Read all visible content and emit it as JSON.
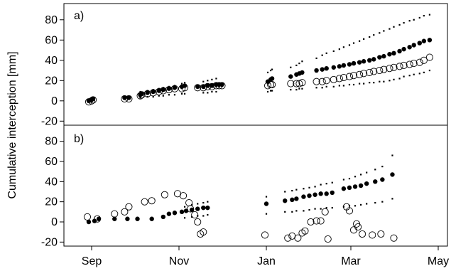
{
  "figure": {
    "ylabel": "Cumulative interception [mm]"
  },
  "chart_data": [
    {
      "type": "scatter",
      "panel_label": "a)",
      "x_axis": {
        "ticks": [
          "Sep",
          "Nov",
          "Jan",
          "Mar",
          "May"
        ]
      },
      "ylabel": "Cumulative interception [mm]",
      "yticks": [
        -20,
        0,
        20,
        40,
        60,
        80
      ],
      "ylim": [
        -24,
        96
      ],
      "grid": false,
      "series": [
        {
          "marker": "filled-circle",
          "x": [
            "Aug 30",
            "Sep 1",
            "Sep 2",
            "Sep 24",
            "Sep 27",
            "Oct 5",
            "Oct 6",
            "Oct 10",
            "Oct 14",
            "Oct 18",
            "Oct 21",
            "Oct 25",
            "Oct 29",
            "Nov 3",
            "Nov 5",
            "Nov 14",
            "Nov 18",
            "Nov 21",
            "Nov 24",
            "Nov 27",
            "Nov 29",
            "Dec 1",
            "Jan 2",
            "Jan 4",
            "Jan 5",
            "Jan 18",
            "Jan 22",
            "Jan 24",
            "Jan 26",
            "Feb 5",
            "Feb 9",
            "Feb 12",
            "Feb 17",
            "Feb 21",
            "Feb 24",
            "Feb 28",
            "Mar 3",
            "Mar 7",
            "Mar 10",
            "Mar 14",
            "Mar 17",
            "Mar 21",
            "Mar 24",
            "Mar 28",
            "Mar 31",
            "Apr 4",
            "Apr 7",
            "Apr 11",
            "Apr 14",
            "Apr 18",
            "Apr 21",
            "Apr 25"
          ],
          "y": [
            0,
            1,
            2,
            3,
            3,
            6,
            7,
            8,
            9,
            10,
            11,
            12,
            13,
            14,
            15,
            14,
            14,
            15,
            15,
            16,
            16,
            16,
            19,
            21,
            22,
            24,
            26,
            27,
            28,
            30,
            31,
            32,
            33,
            34,
            35,
            36,
            37,
            38,
            39,
            40,
            41,
            43,
            44,
            46,
            47,
            49,
            51,
            53,
            55,
            57,
            59,
            60
          ]
        },
        {
          "marker": "open-circle",
          "x": [
            "Aug 30",
            "Sep 1",
            "Sep 2",
            "Sep 24",
            "Sep 27",
            "Oct 5",
            "Oct 6",
            "Oct 10",
            "Oct 14",
            "Oct 18",
            "Oct 21",
            "Oct 25",
            "Oct 29",
            "Nov 3",
            "Nov 5",
            "Nov 14",
            "Nov 18",
            "Nov 21",
            "Nov 24",
            "Nov 27",
            "Nov 29",
            "Dec 1",
            "Jan 2",
            "Jan 4",
            "Jan 5",
            "Jan 18",
            "Jan 22",
            "Jan 24",
            "Jan 26",
            "Feb 5",
            "Feb 9",
            "Feb 12",
            "Feb 17",
            "Feb 21",
            "Feb 24",
            "Feb 28",
            "Mar 3",
            "Mar 7",
            "Mar 10",
            "Mar 14",
            "Mar 17",
            "Mar 21",
            "Mar 24",
            "Mar 28",
            "Mar 31",
            "Apr 4",
            "Apr 7",
            "Apr 11",
            "Apr 14",
            "Apr 18",
            "Apr 21",
            "Apr 25"
          ],
          "y": [
            -1,
            0,
            1,
            2,
            2,
            5,
            6,
            7,
            8,
            9,
            10,
            11,
            12,
            12,
            13,
            13,
            13,
            14,
            14,
            15,
            15,
            15,
            15,
            16,
            16,
            17,
            17,
            17,
            18,
            19,
            19,
            20,
            21,
            22,
            23,
            24,
            25,
            26,
            27,
            28,
            29,
            30,
            31,
            32,
            33,
            34,
            35,
            36,
            37,
            38,
            40,
            43
          ]
        },
        {
          "marker": "small-dot",
          "name_hint": "upper band",
          "x": [
            "Oct 5",
            "Oct 10",
            "Oct 14",
            "Oct 18",
            "Oct 21",
            "Oct 25",
            "Oct 29",
            "Nov 3",
            "Nov 5",
            "Nov 18",
            "Nov 21",
            "Nov 24",
            "Nov 27",
            "Jan 2",
            "Jan 4",
            "Jan 5",
            "Jan 18",
            "Jan 22",
            "Jan 24",
            "Jan 26",
            "Feb 5",
            "Feb 9",
            "Feb 12",
            "Feb 17",
            "Feb 21",
            "Feb 24",
            "Feb 28",
            "Mar 3",
            "Mar 7",
            "Mar 10",
            "Mar 14",
            "Mar 17",
            "Mar 21",
            "Mar 24",
            "Mar 28",
            "Mar 31",
            "Apr 4",
            "Apr 7",
            "Apr 11",
            "Apr 14",
            "Apr 18",
            "Apr 21",
            "Apr 25"
          ],
          "y": [
            9,
            10,
            11,
            12,
            13,
            14,
            15,
            17,
            18,
            19,
            20,
            21,
            22,
            28,
            30,
            31,
            33,
            35,
            37,
            39,
            42,
            45,
            47,
            49,
            51,
            53,
            55,
            57,
            59,
            61,
            63,
            65,
            67,
            69,
            71,
            73,
            75,
            77,
            79,
            80,
            82,
            84,
            85
          ]
        },
        {
          "marker": "small-dot",
          "name_hint": "lower band",
          "x": [
            "Oct 5",
            "Oct 10",
            "Oct 14",
            "Oct 18",
            "Oct 21",
            "Oct 25",
            "Oct 29",
            "Nov 3",
            "Nov 5",
            "Nov 18",
            "Nov 21",
            "Nov 24",
            "Nov 27",
            "Jan 2",
            "Jan 4",
            "Jan 5",
            "Jan 18",
            "Jan 22",
            "Jan 24",
            "Jan 26",
            "Feb 5",
            "Feb 9",
            "Feb 12",
            "Feb 17",
            "Feb 21",
            "Feb 24",
            "Feb 28",
            "Mar 3",
            "Mar 7",
            "Mar 10",
            "Mar 14",
            "Mar 17",
            "Mar 21",
            "Mar 24",
            "Mar 28",
            "Mar 31",
            "Apr 4",
            "Apr 7",
            "Apr 11",
            "Apr 14",
            "Apr 18",
            "Apr 21",
            "Apr 25"
          ],
          "y": [
            3,
            4,
            4,
            5,
            5,
            6,
            6,
            7,
            7,
            8,
            8,
            9,
            9,
            9,
            10,
            10,
            11,
            11,
            12,
            12,
            13,
            13,
            14,
            14,
            15,
            15,
            16,
            16,
            17,
            17,
            18,
            18,
            19,
            19,
            20,
            21,
            22,
            24,
            25,
            26,
            27,
            28,
            30
          ]
        }
      ]
    },
    {
      "type": "scatter",
      "panel_label": "b)",
      "x_axis": {
        "ticks": [
          "Sep",
          "Nov",
          "Jan",
          "Mar",
          "May"
        ]
      },
      "ylabel": "Cumulative interception [mm]",
      "yticks": [
        -20,
        0,
        20,
        40,
        60,
        80
      ],
      "ylim": [
        -24,
        96
      ],
      "grid": false,
      "series": [
        {
          "marker": "filled-circle",
          "x": [
            "Aug 30",
            "Sep 3",
            "Sep 6",
            "Sep 17",
            "Sep 26",
            "Oct 3",
            "Oct 13",
            "Oct 21",
            "Oct 25",
            "Oct 29",
            "Nov 3",
            "Nov 6",
            "Nov 10",
            "Nov 14",
            "Nov 18",
            "Nov 21",
            "Jan 1",
            "Jan 14",
            "Jan 19",
            "Jan 22",
            "Jan 27",
            "Jan 31",
            "Feb 4",
            "Feb 8",
            "Feb 12",
            "Feb 16",
            "Feb 24",
            "Feb 28",
            "Mar 4",
            "Mar 8",
            "Mar 12",
            "Mar 18",
            "Mar 23",
            "Mar 30"
          ],
          "y": [
            0,
            1,
            3,
            3,
            3,
            3,
            3,
            5,
            8,
            9,
            10,
            11,
            12,
            13,
            14,
            14,
            18,
            21,
            22,
            23,
            25,
            26,
            27,
            28,
            28,
            29,
            33,
            34,
            35,
            36,
            38,
            40,
            42,
            47
          ]
        },
        {
          "marker": "open-circle",
          "x": [
            "Aug 29",
            "Sep 5",
            "Sep 17",
            "Sep 24",
            "Sep 27",
            "Oct 8",
            "Oct 13",
            "Oct 22",
            "Oct 31",
            "Nov 4",
            "Nov 8",
            "Nov 9",
            "Nov 12",
            "Nov 14",
            "Nov 16",
            "Nov 18",
            "Dec 31",
            "Jan 16",
            "Jan 19",
            "Jan 23",
            "Jan 26",
            "Jan 28",
            "Feb 1",
            "Feb 5",
            "Feb 8",
            "Feb 11",
            "Feb 13",
            "Feb 26",
            "Feb 28",
            "Mar 3",
            "Mar 5",
            "Mar 6",
            "Mar 9",
            "Mar 16",
            "Mar 22",
            "Mar 31"
          ],
          "y": [
            5,
            3,
            8,
            10,
            15,
            20,
            21,
            27,
            28,
            26,
            19,
            13,
            7,
            0,
            -12,
            -10,
            -13,
            -16,
            -14,
            -16,
            -11,
            -9,
            0,
            1,
            1,
            10,
            -17,
            15,
            11,
            -8,
            -2,
            -5,
            -12,
            -13,
            -12,
            -16
          ]
        },
        {
          "marker": "small-dot",
          "name_hint": "upper band",
          "x": [
            "Nov 5",
            "Nov 10",
            "Nov 14",
            "Nov 18",
            "Nov 21",
            "Jan 1",
            "Jan 14",
            "Jan 19",
            "Jan 22",
            "Jan 27",
            "Jan 31",
            "Feb 4",
            "Feb 8",
            "Feb 12",
            "Feb 16",
            "Feb 24",
            "Feb 28",
            "Mar 4",
            "Mar 8",
            "Mar 12",
            "Mar 18",
            "Mar 23",
            "Mar 30"
          ],
          "y": [
            15,
            17,
            18,
            19,
            20,
            25,
            30,
            31,
            32,
            33,
            34,
            35,
            37,
            38,
            39,
            42,
            43,
            45,
            47,
            49,
            52,
            55,
            66
          ]
        },
        {
          "marker": "small-dot",
          "name_hint": "lower band",
          "x": [
            "Nov 5",
            "Nov 10",
            "Nov 14",
            "Nov 18",
            "Nov 21",
            "Jan 1",
            "Jan 14",
            "Jan 19",
            "Jan 22",
            "Jan 27",
            "Jan 31",
            "Feb 4",
            "Feb 8",
            "Feb 12",
            "Feb 16",
            "Feb 24",
            "Feb 28",
            "Mar 4",
            "Mar 8",
            "Mar 12",
            "Mar 18",
            "Mar 23",
            "Mar 30"
          ],
          "y": [
            4,
            5,
            6,
            6,
            7,
            8,
            10,
            10,
            11,
            11,
            12,
            13,
            13,
            14,
            14,
            15,
            16,
            16,
            17,
            18,
            19,
            20,
            23
          ]
        }
      ]
    }
  ]
}
